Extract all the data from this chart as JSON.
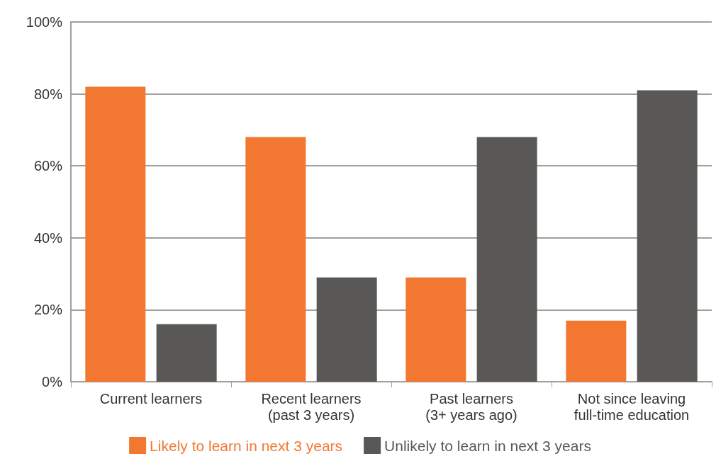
{
  "chart_data": {
    "type": "bar",
    "categories": [
      "Current learners",
      "Recent learners\n(past 3 years)",
      "Past learners\n(3+ years ago)",
      "Not since leaving\nfull-time education"
    ],
    "series": [
      {
        "name": "Likely to learn in next 3 years",
        "color": "#f27831",
        "values": [
          82,
          68,
          29,
          17
        ]
      },
      {
        "name": "Unlikely to learn in next 3 years",
        "color": "#595856",
        "values": [
          16,
          29,
          68,
          81
        ]
      }
    ],
    "ylim": [
      0,
      100
    ],
    "yticks": [
      {
        "value": 0,
        "label": "0%"
      },
      {
        "value": 20,
        "label": "20%"
      },
      {
        "value": 40,
        "label": "40%"
      },
      {
        "value": 60,
        "label": "60%"
      },
      {
        "value": 80,
        "label": "80%"
      },
      {
        "value": 100,
        "label": "100%"
      }
    ],
    "grid": "y",
    "legend": "bottom"
  }
}
